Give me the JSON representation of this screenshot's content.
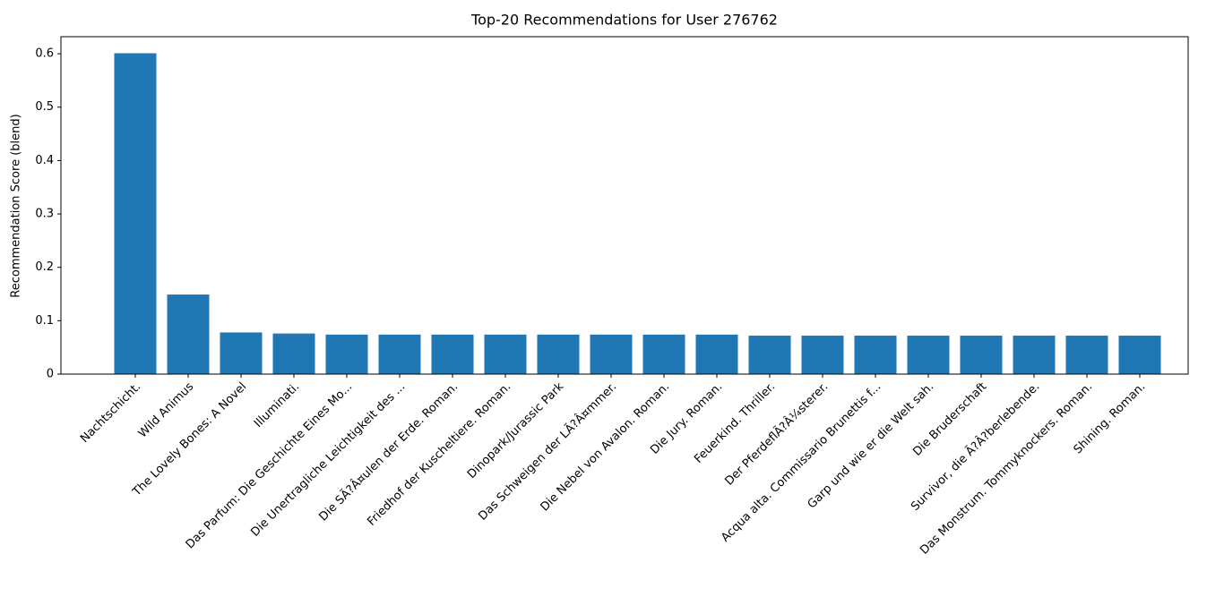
{
  "chart_data": {
    "type": "bar",
    "title": "Top-20 Recommendations for User 276762",
    "ylabel": "Recommendation Score (blend)",
    "categories": [
      "Nachtschicht.",
      "Wild Animus",
      "The Lovely Bones: A Novel",
      "Illuminati.",
      "Das Parfum: Die Geschichte Eines Mo...",
      "Die Unertragliche Leichtigkeit des ...",
      "Die SÃ?Â¤ulen der Erde. Roman.",
      "Friedhof der Kuscheltiere. Roman.",
      "Dinopark/Jurassic Park",
      "Das Schweigen der LÃ?Â¤mmer.",
      "Die Nebel von Avalon. Roman.",
      "Die Jury. Roman.",
      "Feuerkind. Thriller.",
      "Der PferdeflÃ?Â¼sterer.",
      "Acqua alta. Commissario Brunettis f...",
      "Garp und wie er die Welt sah.",
      "Die Bruderschaft",
      "Survivor, die Ã?Â?berlebende.",
      "Das Monstrum. Tommyknockers. Roman.",
      "Shining. Roman."
    ],
    "values": [
      0.601,
      0.149,
      0.078,
      0.076,
      0.074,
      0.074,
      0.074,
      0.074,
      0.074,
      0.074,
      0.074,
      0.074,
      0.072,
      0.072,
      0.072,
      0.072,
      0.072,
      0.072,
      0.072,
      0.072
    ],
    "color": "#1f77b4",
    "ylim": [
      0,
      0.632
    ],
    "yticks": [
      0.0,
      0.1,
      0.2,
      0.3,
      0.4,
      0.5,
      0.6
    ]
  }
}
